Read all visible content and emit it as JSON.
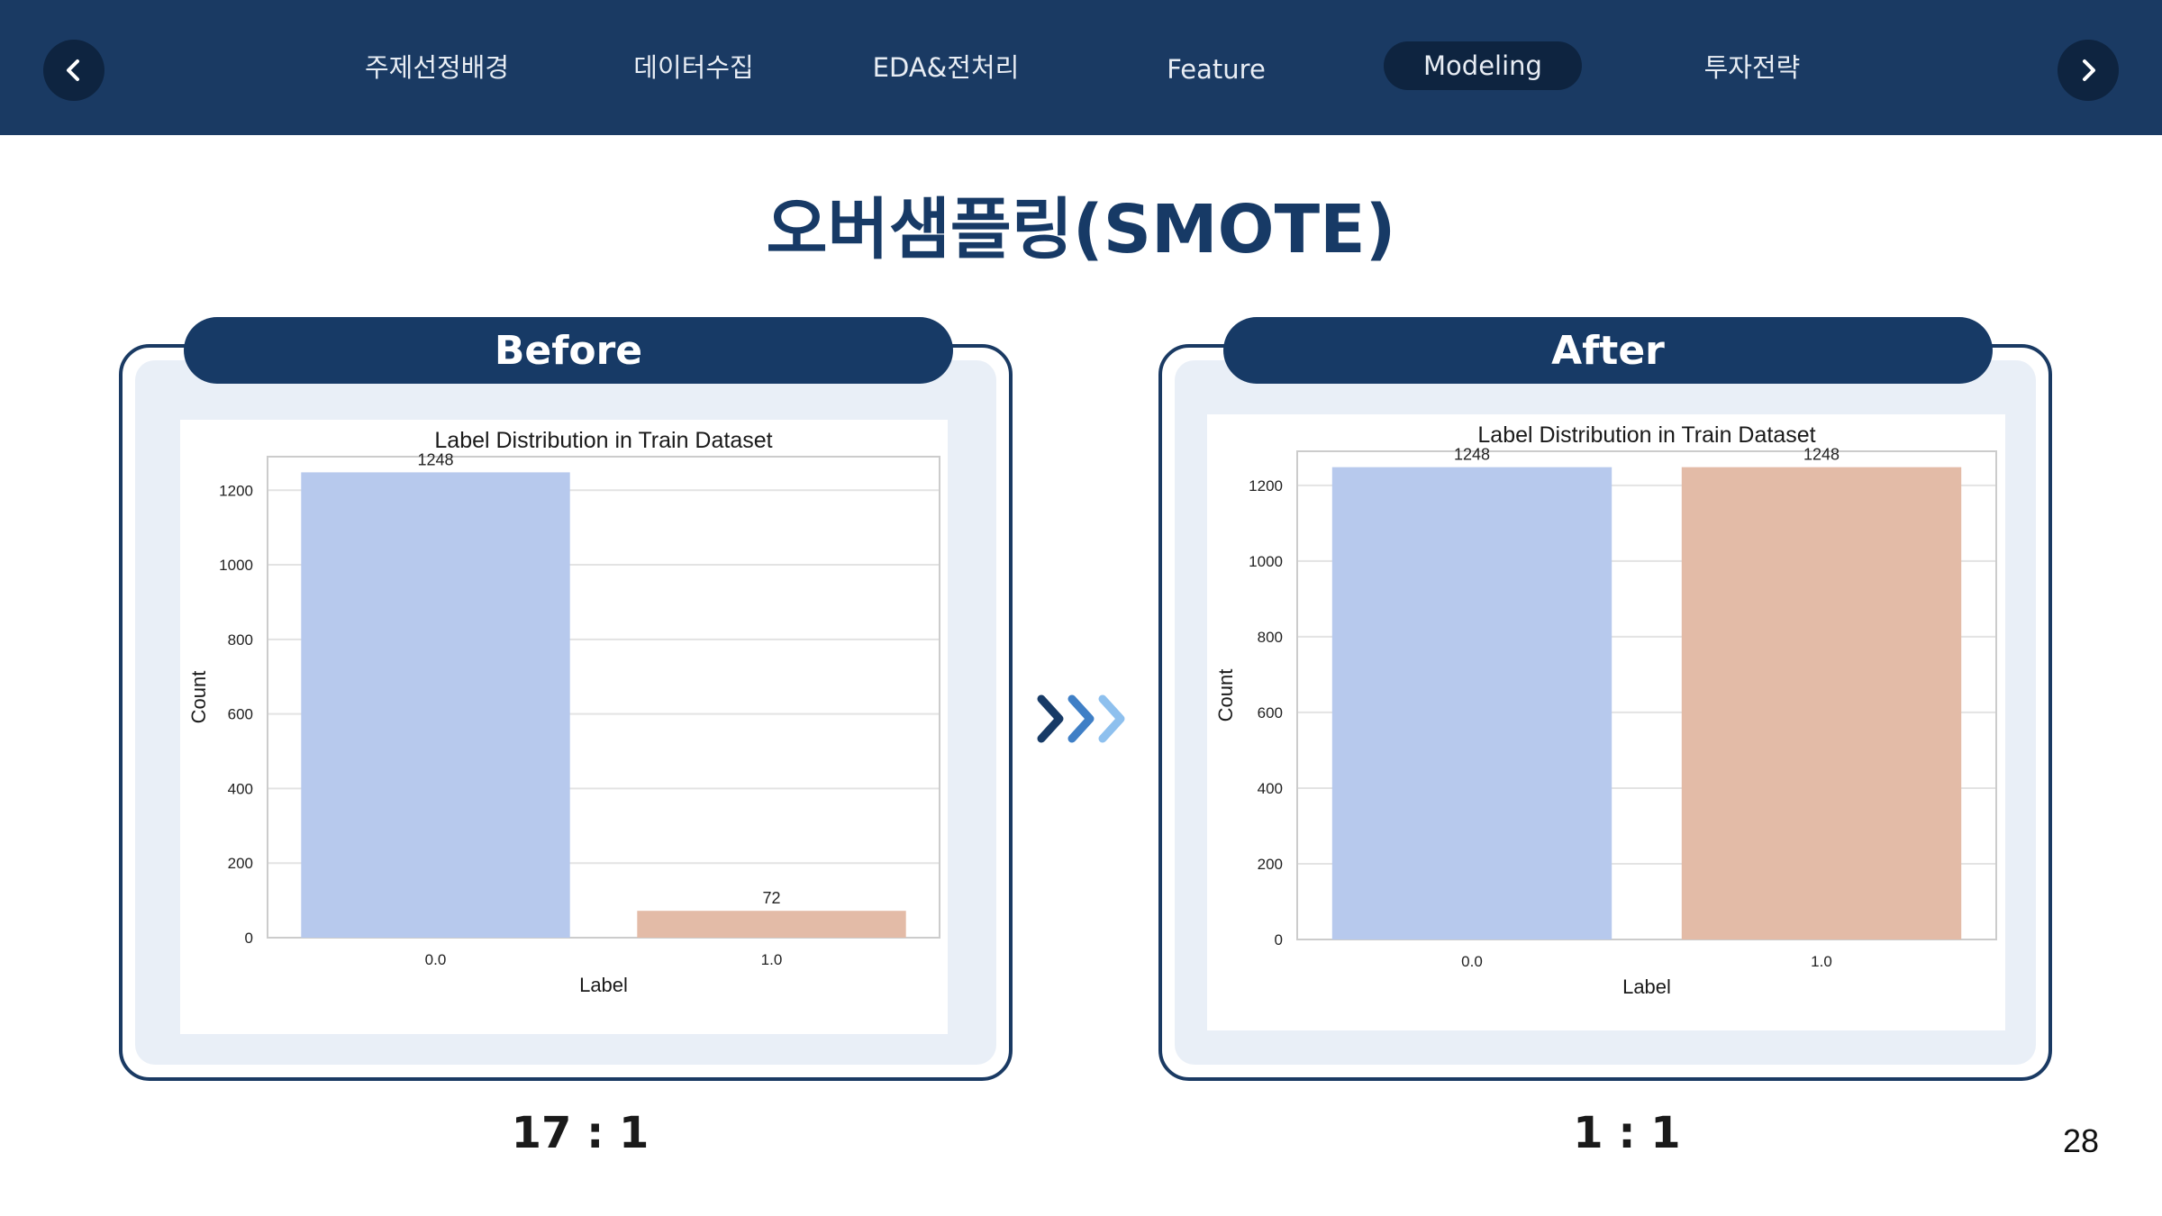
{
  "nav": {
    "prev_icon": "chevron-left-icon",
    "next_icon": "chevron-right-icon",
    "tabs": [
      {
        "label": "주제선정배경",
        "active": false
      },
      {
        "label": "데이터수집",
        "active": false
      },
      {
        "label": "EDA&전처리",
        "active": false
      },
      {
        "label": "Feature",
        "active": false
      },
      {
        "label": "Modeling",
        "active": true
      },
      {
        "label": "투자전략",
        "active": false
      }
    ]
  },
  "title": "오버샘플링(SMOTE)",
  "panels": {
    "before": {
      "header": "Before",
      "ratio": "17 : 1"
    },
    "after": {
      "header": "After",
      "ratio": "1 : 1"
    }
  },
  "transition_icon": "triple-chevron-right-icon",
  "page_number": "28",
  "colors": {
    "navy": "#1a3a63",
    "bar_0": "#b7c9ed",
    "bar_1": "#e3bba7"
  },
  "chart_data": [
    {
      "type": "bar",
      "title": "Label Distribution in Train Dataset",
      "categories": [
        "0.0",
        "1.0"
      ],
      "values": [
        1248,
        72
      ],
      "data_labels": [
        "1248",
        "72"
      ],
      "xlabel": "Label",
      "ylabel": "Count",
      "ylim": [
        0,
        1290
      ],
      "yticks": [
        "0",
        "200",
        "400",
        "600",
        "800",
        "1000",
        "1200"
      ],
      "grid": true
    },
    {
      "type": "bar",
      "title": "Label Distribution in Train Dataset",
      "categories": [
        "0.0",
        "1.0"
      ],
      "values": [
        1248,
        1248
      ],
      "data_labels": [
        "1248",
        "1248"
      ],
      "xlabel": "Label",
      "ylabel": "Count",
      "ylim": [
        0,
        1290
      ],
      "yticks": [
        "0",
        "200",
        "400",
        "600",
        "800",
        "1000",
        "1200"
      ],
      "grid": true
    }
  ]
}
